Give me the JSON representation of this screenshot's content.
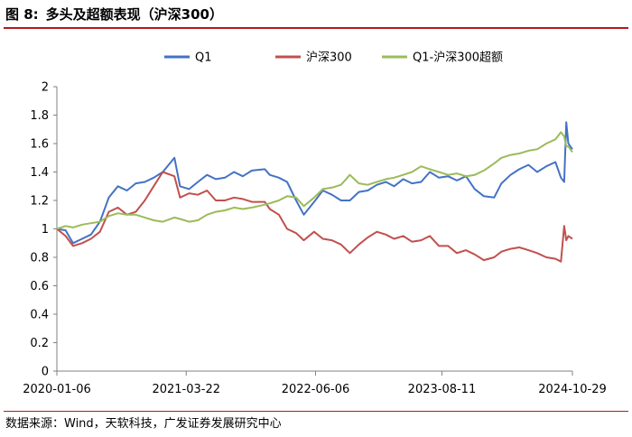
{
  "figure": {
    "label": "图 8:",
    "title": "多头及超额表现（沪深300）",
    "source": "数据来源：Wind，天软科技，广发证券发展研究中心"
  },
  "chart_data": {
    "type": "line",
    "title": "",
    "xlabel": "",
    "ylabel": "",
    "ylim": [
      0,
      2
    ],
    "y_ticks": [
      0,
      0.2,
      0.4,
      0.6,
      0.8,
      1,
      1.2,
      1.4,
      1.6,
      1.8,
      2
    ],
    "y_tick_labels": [
      "0",
      "0.2",
      "0.4",
      "0.6",
      "0.8",
      "1",
      "1.2",
      "1.4",
      "1.6",
      "1.8",
      "2"
    ],
    "x_tick_labels": [
      "2020-01-06",
      "2021-03-22",
      "2022-06-06",
      "2023-08-11",
      "2024-10-29"
    ],
    "x_tick_positions": [
      "2020-01-06",
      "2021-03-22",
      "2022-06-06",
      "2023-08-11",
      "2024-10-29"
    ],
    "xlim": [
      "2020-01-06",
      "2024-10-29"
    ],
    "grid": false,
    "legend_position": "top",
    "x": [
      "2020-01-06",
      "2020-02-05",
      "2020-03-01",
      "2020-04-01",
      "2020-05-01",
      "2020-06-01",
      "2020-07-01",
      "2020-08-01",
      "2020-09-01",
      "2020-10-01",
      "2020-11-01",
      "2020-12-01",
      "2021-01-01",
      "2021-02-10",
      "2021-03-01",
      "2021-04-01",
      "2021-05-01",
      "2021-06-01",
      "2021-07-01",
      "2021-08-01",
      "2021-09-01",
      "2021-10-01",
      "2021-11-01",
      "2021-12-15",
      "2022-01-01",
      "2022-02-01",
      "2022-03-01",
      "2022-04-01",
      "2022-04-27",
      "2022-06-01",
      "2022-07-01",
      "2022-08-01",
      "2022-09-01",
      "2022-10-01",
      "2022-11-01",
      "2022-12-01",
      "2023-01-01",
      "2023-02-01",
      "2023-03-01",
      "2023-04-01",
      "2023-05-01",
      "2023-06-01",
      "2023-07-01",
      "2023-08-01",
      "2023-09-01",
      "2023-10-01",
      "2023-11-01",
      "2023-12-01",
      "2024-01-01",
      "2024-02-05",
      "2024-03-01",
      "2024-04-01",
      "2024-05-01",
      "2024-06-01",
      "2024-07-01",
      "2024-08-01",
      "2024-09-01",
      "2024-09-20",
      "2024-10-01",
      "2024-10-08",
      "2024-10-15",
      "2024-10-29"
    ],
    "series": [
      {
        "name": "Q1",
        "color": "#4472c4",
        "values": [
          1.0,
          0.99,
          0.9,
          0.93,
          0.96,
          1.05,
          1.22,
          1.3,
          1.27,
          1.32,
          1.33,
          1.36,
          1.4,
          1.5,
          1.3,
          1.28,
          1.33,
          1.38,
          1.35,
          1.36,
          1.4,
          1.37,
          1.41,
          1.42,
          1.38,
          1.36,
          1.33,
          1.2,
          1.1,
          1.19,
          1.27,
          1.24,
          1.2,
          1.2,
          1.26,
          1.27,
          1.31,
          1.33,
          1.3,
          1.35,
          1.32,
          1.33,
          1.4,
          1.36,
          1.37,
          1.34,
          1.37,
          1.28,
          1.23,
          1.22,
          1.32,
          1.38,
          1.42,
          1.45,
          1.4,
          1.44,
          1.47,
          1.36,
          1.33,
          1.75,
          1.6,
          1.56
        ]
      },
      {
        "name": "沪深300",
        "color": "#c0504d",
        "values": [
          1.0,
          0.95,
          0.88,
          0.9,
          0.93,
          0.98,
          1.12,
          1.15,
          1.1,
          1.12,
          1.2,
          1.3,
          1.4,
          1.37,
          1.22,
          1.25,
          1.24,
          1.27,
          1.2,
          1.2,
          1.22,
          1.21,
          1.19,
          1.19,
          1.14,
          1.1,
          1.0,
          0.97,
          0.92,
          0.98,
          0.93,
          0.92,
          0.89,
          0.83,
          0.89,
          0.94,
          0.98,
          0.96,
          0.93,
          0.95,
          0.91,
          0.92,
          0.95,
          0.88,
          0.88,
          0.83,
          0.85,
          0.82,
          0.78,
          0.8,
          0.84,
          0.86,
          0.87,
          0.85,
          0.83,
          0.8,
          0.79,
          0.77,
          1.02,
          0.92,
          0.95,
          0.93
        ]
      },
      {
        "name": "Q1-沪深300超额",
        "color": "#9bbb59",
        "values": [
          1.0,
          1.02,
          1.01,
          1.03,
          1.04,
          1.05,
          1.09,
          1.11,
          1.1,
          1.1,
          1.08,
          1.06,
          1.05,
          1.08,
          1.07,
          1.05,
          1.06,
          1.1,
          1.12,
          1.13,
          1.15,
          1.14,
          1.15,
          1.17,
          1.18,
          1.2,
          1.23,
          1.22,
          1.16,
          1.22,
          1.28,
          1.29,
          1.31,
          1.38,
          1.32,
          1.31,
          1.33,
          1.35,
          1.36,
          1.38,
          1.4,
          1.44,
          1.42,
          1.4,
          1.38,
          1.39,
          1.37,
          1.38,
          1.41,
          1.46,
          1.5,
          1.52,
          1.53,
          1.55,
          1.56,
          1.6,
          1.63,
          1.68,
          1.65,
          1.58,
          1.58,
          1.54
        ]
      }
    ]
  }
}
